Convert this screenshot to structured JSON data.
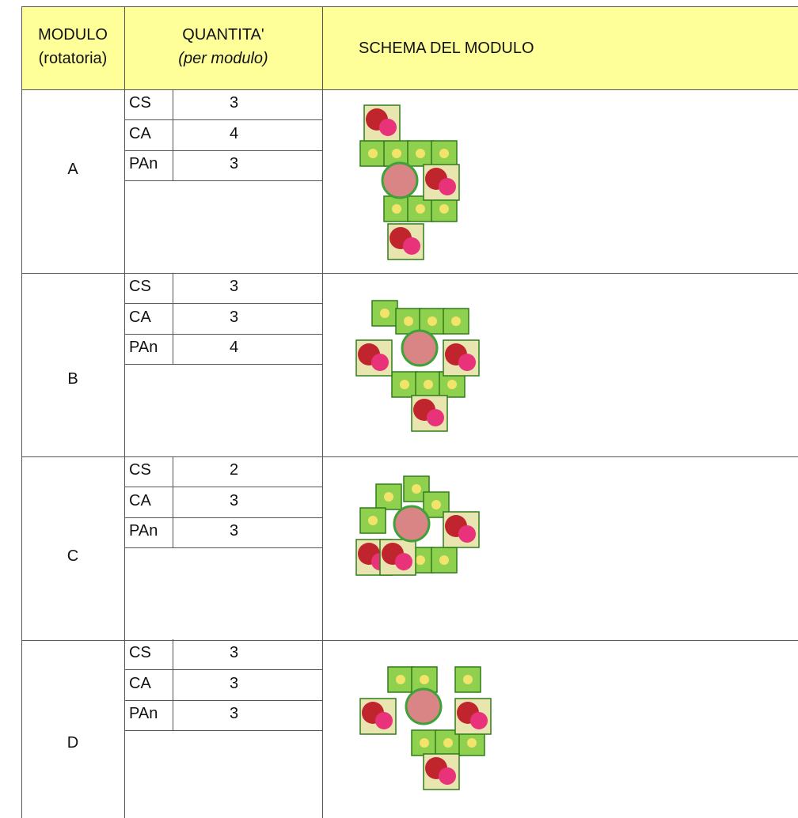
{
  "header": {
    "module": [
      "MODULO",
      "(rotatoria)"
    ],
    "quantity": [
      "QUANTITA'",
      "(per modulo)"
    ],
    "schema": "SCHEMA DEL MODULO"
  },
  "rows": [
    {
      "module": "A",
      "items": [
        {
          "code": "CS",
          "qty": 3
        },
        {
          "code": "CA",
          "qty": 4
        },
        {
          "code": "PAn",
          "qty": 3
        }
      ]
    },
    {
      "module": "B",
      "items": [
        {
          "code": "CS",
          "qty": 3
        },
        {
          "code": "CA",
          "qty": 3
        },
        {
          "code": "PAn",
          "qty": 4
        }
      ]
    },
    {
      "module": "C",
      "items": [
        {
          "code": "CS",
          "qty": 2
        },
        {
          "code": "CA",
          "qty": 3
        },
        {
          "code": "PAn",
          "qty": 3
        }
      ]
    },
    {
      "module": "D",
      "items": [
        {
          "code": "CS",
          "qty": 3
        },
        {
          "code": "CA",
          "qty": 3
        },
        {
          "code": "PAn",
          "qty": 3
        }
      ]
    }
  ]
}
